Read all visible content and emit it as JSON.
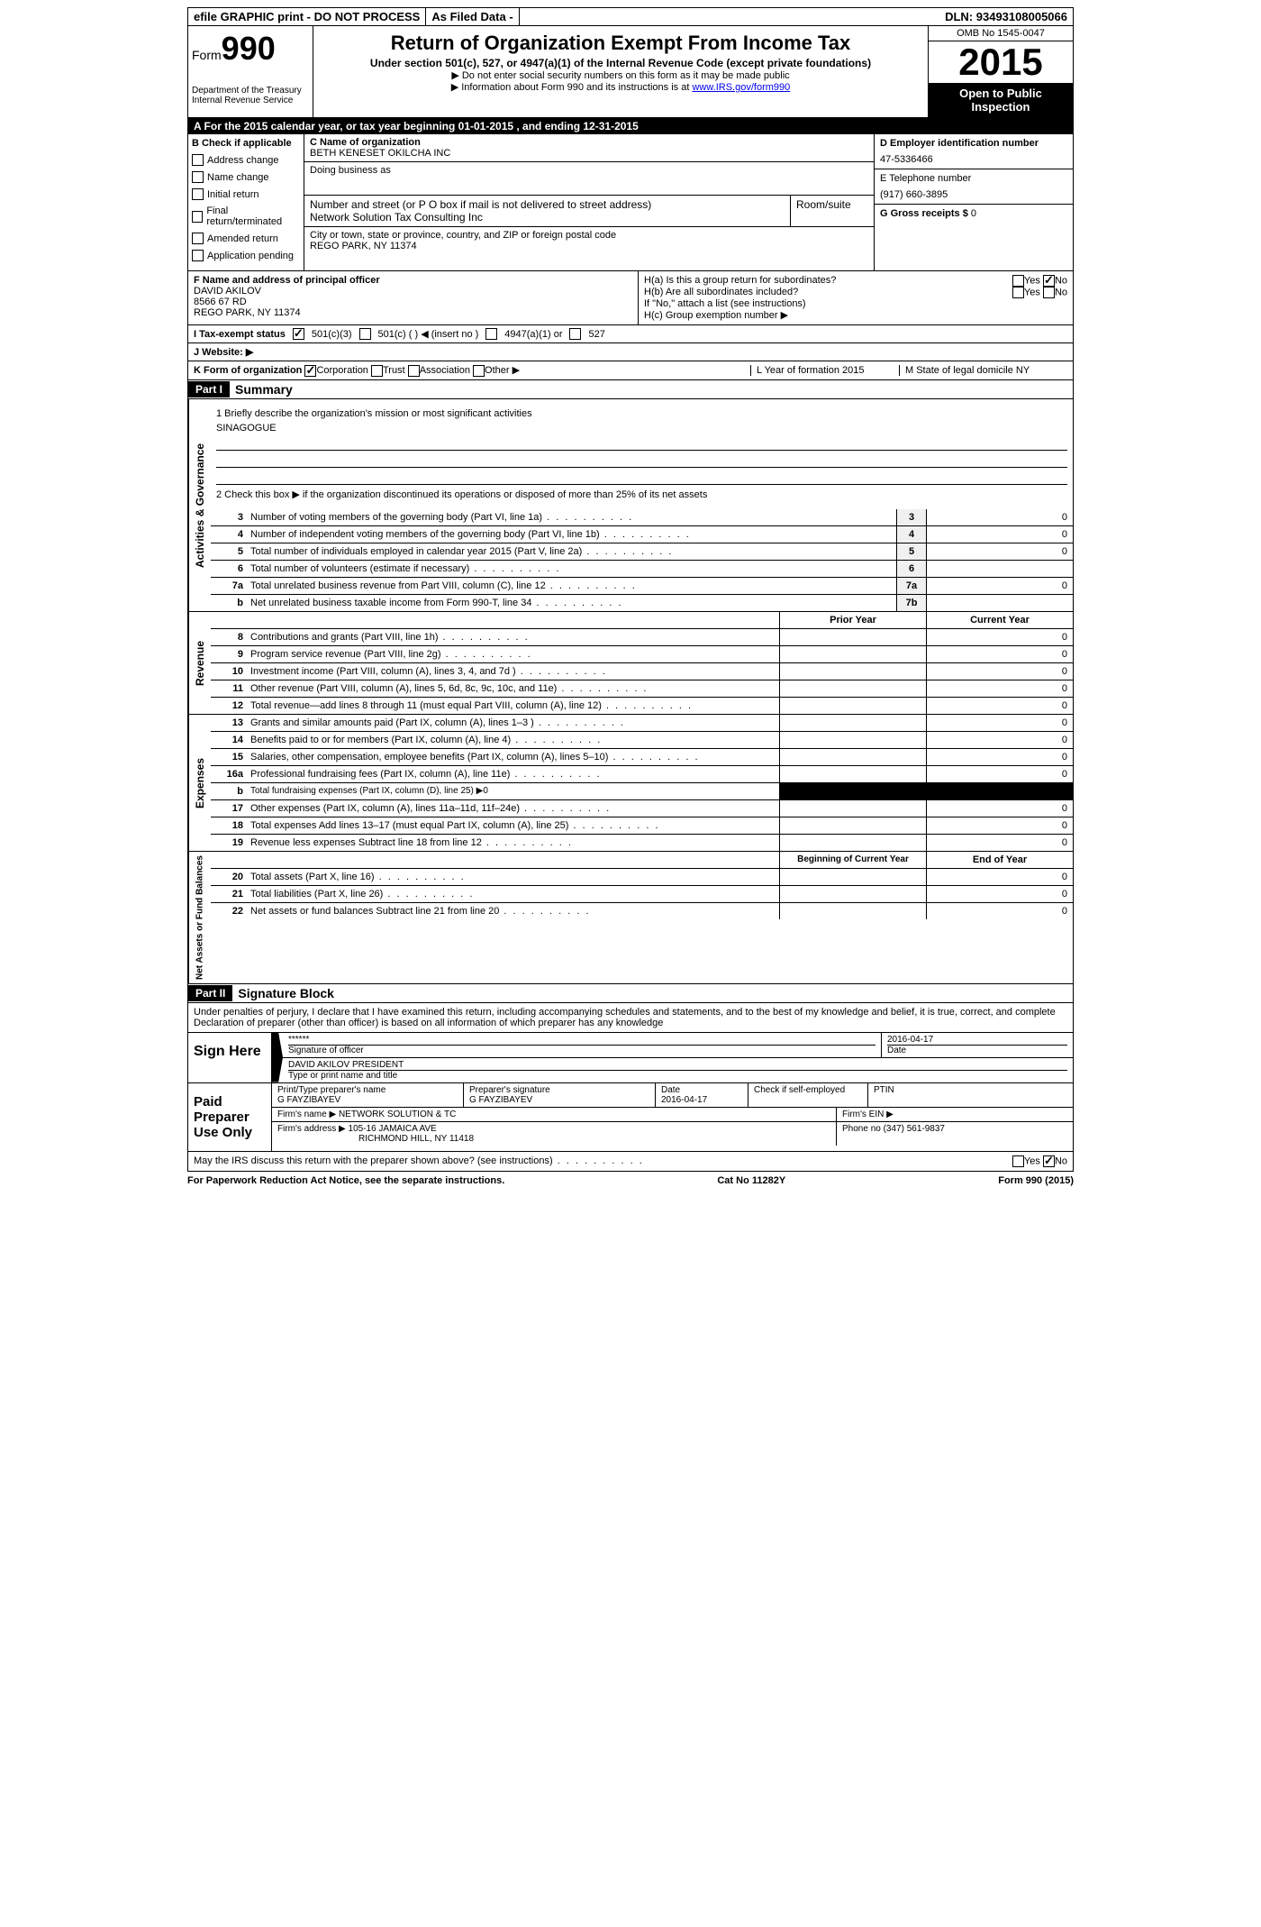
{
  "topbar": {
    "efile": "efile GRAPHIC print - DO NOT PROCESS",
    "asfiled": "As Filed Data -",
    "dln_label": "DLN:",
    "dln": "93493108005066"
  },
  "header": {
    "form_label": "Form",
    "form_num": "990",
    "dept": "Department of the Treasury",
    "irs": "Internal Revenue Service",
    "title": "Return of Organization Exempt From Income Tax",
    "sub": "Under section 501(c), 527, or 4947(a)(1) of the Internal Revenue Code (except private foundations)",
    "sub2a": "▶ Do not enter social security numbers on this form as it may be made public",
    "sub2b": "▶ Information about Form 990 and its instructions is at ",
    "irs_link": "www.IRS.gov/form990",
    "omb": "OMB No 1545-0047",
    "year": "2015",
    "open": "Open to Public Inspection"
  },
  "row_a": "A   For the 2015 calendar year, or tax year beginning 01-01-2015    , and ending 12-31-2015",
  "col_b": {
    "head": "B  Check if applicable",
    "items": [
      "Address change",
      "Name change",
      "Initial return",
      "Final return/terminated",
      "Amended return",
      "Application pending"
    ]
  },
  "col_c": {
    "name_label": "C Name of organization",
    "name": "BETH KENESET OKILCHA INC",
    "dba_label": "Doing business as",
    "addr_label": "Number and street (or P O  box if mail is not delivered to street address)",
    "addr": "Network Solution Tax Consulting Inc",
    "room_label": "Room/suite",
    "city_label": "City or town, state or province, country, and ZIP or foreign postal code",
    "city": "REGO PARK, NY  11374"
  },
  "col_d": {
    "ein_label": "D Employer identification number",
    "ein": "47-5336466",
    "phone_label": "E Telephone number",
    "phone": "(917) 660-3895",
    "gross_label": "G Gross receipts $",
    "gross": "0"
  },
  "officer": {
    "label": "F   Name and address of principal officer",
    "name": "DAVID AKILOV",
    "addr1": "8566 67 RD",
    "addr2": "REGO PARK, NY  11374",
    "ha": "H(a)  Is this a group return for subordinates?",
    "hb": "H(b)  Are all subordinates included?",
    "hnote": "If \"No,\" attach a list  (see instructions)",
    "hc": "H(c)   Group exemption number ▶",
    "yes": "Yes",
    "no": "No"
  },
  "row_i": {
    "label": "I   Tax-exempt status",
    "opts": [
      "501(c)(3)",
      "501(c) (  ) ◀ (insert no )",
      "4947(a)(1) or",
      "527"
    ]
  },
  "row_j": "J   Website: ▶",
  "row_k": {
    "label": "K Form of organization",
    "opts": [
      "Corporation",
      "Trust",
      "Association",
      "Other ▶"
    ],
    "year_label": "L Year of formation  2015",
    "state_label": "M State of legal domicile  NY"
  },
  "part1": {
    "header": "Part I",
    "title": "Summary",
    "l1": "1 Briefly describe the organization's mission or most significant activities",
    "l1val": "SINAGOGUE",
    "l2": "2  Check this box ▶       if the organization discontinued its operations or disposed of more than 25% of its net assets",
    "lines": [
      {
        "n": "3",
        "t": "Number of voting members of the governing body (Part VI, line 1a)",
        "b": "3",
        "v": "0"
      },
      {
        "n": "4",
        "t": "Number of independent voting members of the governing body (Part VI, line 1b)",
        "b": "4",
        "v": "0"
      },
      {
        "n": "5",
        "t": "Total number of individuals employed in calendar year 2015 (Part V, line 2a)",
        "b": "5",
        "v": "0"
      },
      {
        "n": "6",
        "t": "Total number of volunteers (estimate if necessary)",
        "b": "6",
        "v": ""
      },
      {
        "n": "7a",
        "t": "Total unrelated business revenue from Part VIII, column (C), line 12",
        "b": "7a",
        "v": "0"
      },
      {
        "n": "b",
        "t": "Net unrelated business taxable income from Form 990-T, line 34",
        "b": "7b",
        "v": ""
      }
    ],
    "col_prior": "Prior Year",
    "col_current": "Current Year",
    "revenue": [
      {
        "n": "8",
        "t": "Contributions and grants (Part VIII, line 1h)",
        "p": "",
        "c": "0"
      },
      {
        "n": "9",
        "t": "Program service revenue (Part VIII, line 2g)",
        "p": "",
        "c": "0"
      },
      {
        "n": "10",
        "t": "Investment income (Part VIII, column (A), lines 3, 4, and 7d )",
        "p": "",
        "c": "0"
      },
      {
        "n": "11",
        "t": "Other revenue (Part VIII, column (A), lines 5, 6d, 8c, 9c, 10c, and 11e)",
        "p": "",
        "c": "0"
      },
      {
        "n": "12",
        "t": "Total revenue—add lines 8 through 11 (must equal Part VIII, column (A), line 12)",
        "p": "",
        "c": "0"
      }
    ],
    "expenses": [
      {
        "n": "13",
        "t": "Grants and similar amounts paid (Part IX, column (A), lines 1–3 )",
        "p": "",
        "c": "0"
      },
      {
        "n": "14",
        "t": "Benefits paid to or for members (Part IX, column (A), line 4)",
        "p": "",
        "c": "0"
      },
      {
        "n": "15",
        "t": "Salaries, other compensation, employee benefits (Part IX, column (A), lines 5–10)",
        "p": "",
        "c": "0"
      },
      {
        "n": "16a",
        "t": "Professional fundraising fees (Part IX, column (A), line 11e)",
        "p": "",
        "c": "0"
      },
      {
        "n": "b",
        "t": "Total fundraising expenses (Part IX, column (D), line 25)  ▶0",
        "p": "BLACK",
        "c": "BLACK"
      },
      {
        "n": "17",
        "t": "Other expenses (Part IX, column (A), lines 11a–11d, 11f–24e)",
        "p": "",
        "c": "0"
      },
      {
        "n": "18",
        "t": "Total expenses  Add lines 13–17 (must equal Part IX, column (A), line 25)",
        "p": "",
        "c": "0"
      },
      {
        "n": "19",
        "t": "Revenue less expenses  Subtract line 18 from line 12",
        "p": "",
        "c": "0"
      }
    ],
    "col_begin": "Beginning of Current Year",
    "col_end": "End of Year",
    "netassets": [
      {
        "n": "20",
        "t": "Total assets (Part X, line 16)",
        "p": "",
        "c": "0"
      },
      {
        "n": "21",
        "t": "Total liabilities (Part X, line 26)",
        "p": "",
        "c": "0"
      },
      {
        "n": "22",
        "t": "Net assets or fund balances  Subtract line 21 from line 20",
        "p": "",
        "c": "0"
      }
    ],
    "vert_gov": "Activities & Governance",
    "vert_rev": "Revenue",
    "vert_exp": "Expenses",
    "vert_net": "Net Assets or Fund Balances"
  },
  "part2": {
    "header": "Part II",
    "title": "Signature Block",
    "perjury": "Under penalties of perjury, I declare that I have examined this return, including accompanying schedules and statements, and to the best of my knowledge and belief, it is true, correct, and complete  Declaration of preparer (other than officer) is based on all information of which preparer has any knowledge",
    "sign_here": "Sign Here",
    "sig_stars": "******",
    "sig_officer_label": "Signature of officer",
    "sig_date": "2016-04-17",
    "sig_date_label": "Date",
    "sig_name": "DAVID AKILOV PRESIDENT",
    "sig_name_label": "Type or print name and title",
    "paid": "Paid Preparer Use Only",
    "prep_name_label": "Print/Type preparer's name",
    "prep_name": "G FAYZIBAYEV",
    "prep_sig_label": "Preparer's signature",
    "prep_sig": "G FAYZIBAYEV",
    "prep_date_label": "Date",
    "prep_date": "2016-04-17",
    "prep_check": "Check       if self-employed",
    "ptin": "PTIN",
    "firm_name_label": "Firm's name     ▶",
    "firm_name": "NETWORK SOLUTION & TC",
    "firm_ein": "Firm's EIN ▶",
    "firm_addr_label": "Firm's address ▶",
    "firm_addr1": "105-16 JAMAICA AVE",
    "firm_addr2": "RICHMOND HILL, NY  11418",
    "firm_phone": "Phone no  (347) 561-9837",
    "discuss": "May the IRS discuss this return with the preparer shown above? (see instructions)",
    "yes": "Yes",
    "no": "No"
  },
  "footer": {
    "left": "For Paperwork Reduction Act Notice, see the separate instructions.",
    "mid": "Cat No  11282Y",
    "right": "Form 990 (2015)"
  }
}
